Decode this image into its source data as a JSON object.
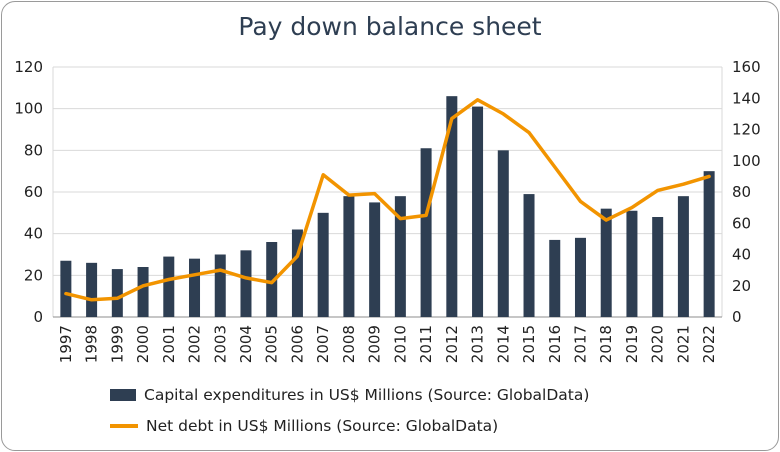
{
  "title": "Pay down balance sheet",
  "colors": {
    "bar": "#2e3e52",
    "line": "#f29400",
    "grid": "#d9d9d9",
    "axis": "#8c8c8c"
  },
  "chart_data": {
    "type": "bar",
    "categories": [
      "1997",
      "1998",
      "1999",
      "2000",
      "2001",
      "2002",
      "2003",
      "2004",
      "2005",
      "2006",
      "2007",
      "2008",
      "2009",
      "2010",
      "2011",
      "2012",
      "2013",
      "2014",
      "2015",
      "2016",
      "2017",
      "2018",
      "2019",
      "2020",
      "2021",
      "2022"
    ],
    "series": [
      {
        "name": "Capital expenditures in US$ Millions (Source: GlobalData)",
        "type": "bar",
        "axis": "left",
        "values": [
          27,
          26,
          23,
          24,
          29,
          28,
          30,
          32,
          36,
          42,
          50,
          58,
          55,
          58,
          81,
          106,
          101,
          80,
          59,
          37,
          38,
          52,
          51,
          48,
          58,
          70
        ]
      },
      {
        "name": "Net debt in US$ Millions (Source: GlobalData)",
        "type": "line",
        "axis": "right",
        "values": [
          15,
          11,
          12,
          20,
          24,
          27,
          30,
          25,
          22,
          39,
          91,
          78,
          79,
          63,
          65,
          127,
          139,
          130,
          118,
          96,
          74,
          62,
          70,
          81,
          85,
          90
        ]
      }
    ],
    "left_axis": {
      "ylim": [
        0,
        120
      ],
      "ticks": [
        0,
        20,
        40,
        60,
        80,
        100,
        120
      ]
    },
    "right_axis": {
      "ylim": [
        0,
        160
      ],
      "ticks": [
        0,
        20,
        40,
        60,
        80,
        100,
        120,
        140,
        160
      ]
    },
    "grid": true,
    "legend_position": "bottom"
  }
}
